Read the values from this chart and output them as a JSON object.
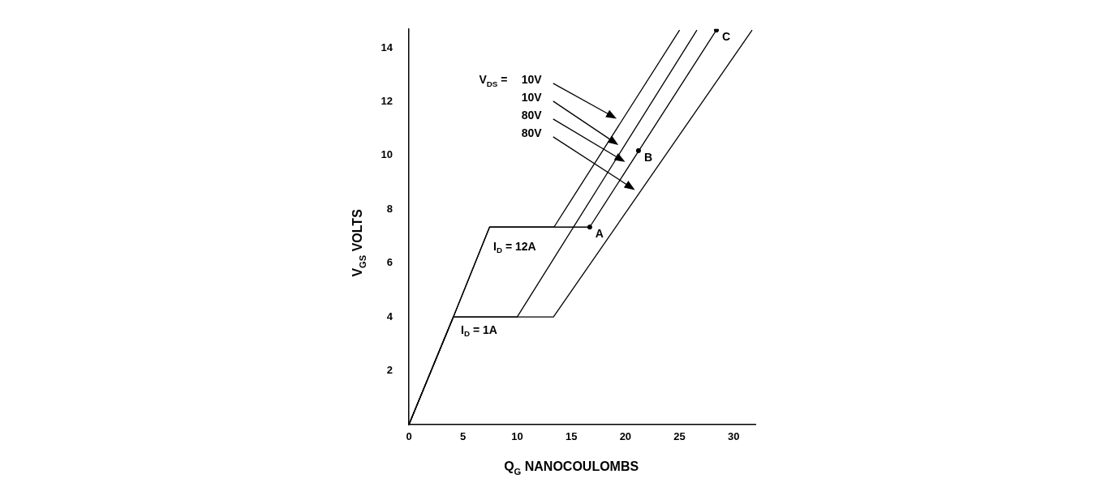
{
  "chart_data": {
    "type": "line",
    "xlabel": "Q$_{G}$ NANOCOULOMBS",
    "ylabel": "V$_{GS}$ VOLTS",
    "xlim": [
      0,
      32
    ],
    "xticks": [
      0,
      5,
      10,
      15,
      20,
      25,
      30
    ],
    "ylim": [
      0,
      14.7
    ],
    "yticks": [
      2,
      4,
      6,
      8,
      10,
      12,
      14
    ],
    "grid": false,
    "legend": false,
    "line_style": "solid",
    "series": [
      {
        "color": "#000000",
        "x": [
          0,
          4.1,
          7.45,
          13.4,
          25.0
        ],
        "values": [
          0,
          4,
          7.34,
          7.34,
          14.66
        ]
      },
      {
        "color": "#000000",
        "x": [
          0,
          4.1,
          10.0,
          26.6
        ],
        "values": [
          0,
          4,
          4,
          14.66
        ]
      },
      {
        "color": "#000000",
        "x": [
          0,
          4.1,
          7.45,
          16.7,
          28.4
        ],
        "values": [
          0,
          4,
          7.34,
          7.34,
          14.66
        ]
      },
      {
        "color": "#000000",
        "x": [
          0,
          4.1,
          13.35,
          31.7
        ],
        "values": [
          0,
          4,
          4,
          14.66
        ]
      },
      {
        "type": "scatter",
        "color": "#000000",
        "x": [
          16.7,
          21.2,
          28.4
        ],
        "values": [
          7.34,
          10.18,
          14.66
        ]
      }
    ],
    "annotations": [
      "V$_{DS}$ =",
      "I$_{D}$ = 12A",
      "I$_{D}$ = 1A",
      "10V",
      "10V",
      "80V",
      "80V",
      {
        "text": "A",
        "x": 16.7,
        "y": 7.34
      },
      {
        "text": "B",
        "x": 21.2,
        "y": 10.18
      },
      {
        "text": "C",
        "x": 28.4,
        "y": 14.66
      }
    ]
  }
}
